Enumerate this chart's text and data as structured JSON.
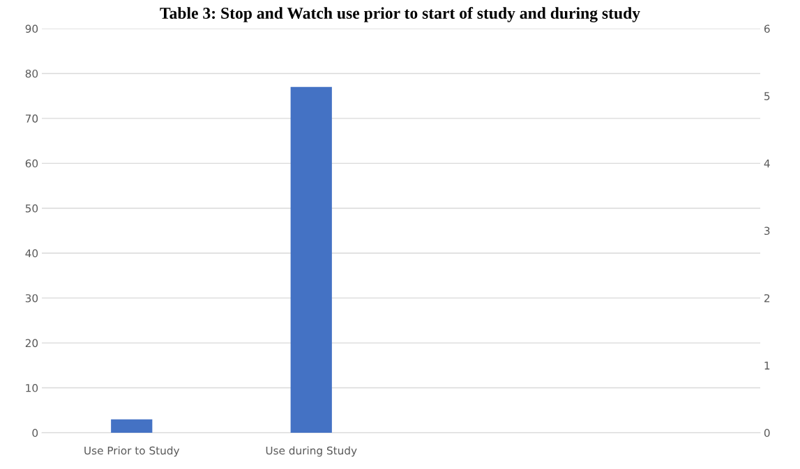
{
  "chart_data": {
    "type": "bar",
    "title": "Table 3: Stop and Watch use prior to start of study and during study",
    "categories": [
      "Use Prior to Study",
      "Use during Study",
      null,
      null
    ],
    "values": [
      3,
      77,
      null,
      null
    ],
    "color": "#4472c4",
    "ylim": [
      0,
      90
    ],
    "yticks": [
      0,
      10,
      20,
      30,
      40,
      50,
      60,
      70,
      80,
      90
    ],
    "y2lim": [
      0,
      6
    ],
    "y2ticks": [
      0,
      1,
      2,
      3,
      4,
      5,
      6
    ],
    "grid": "y",
    "legend": false
  }
}
